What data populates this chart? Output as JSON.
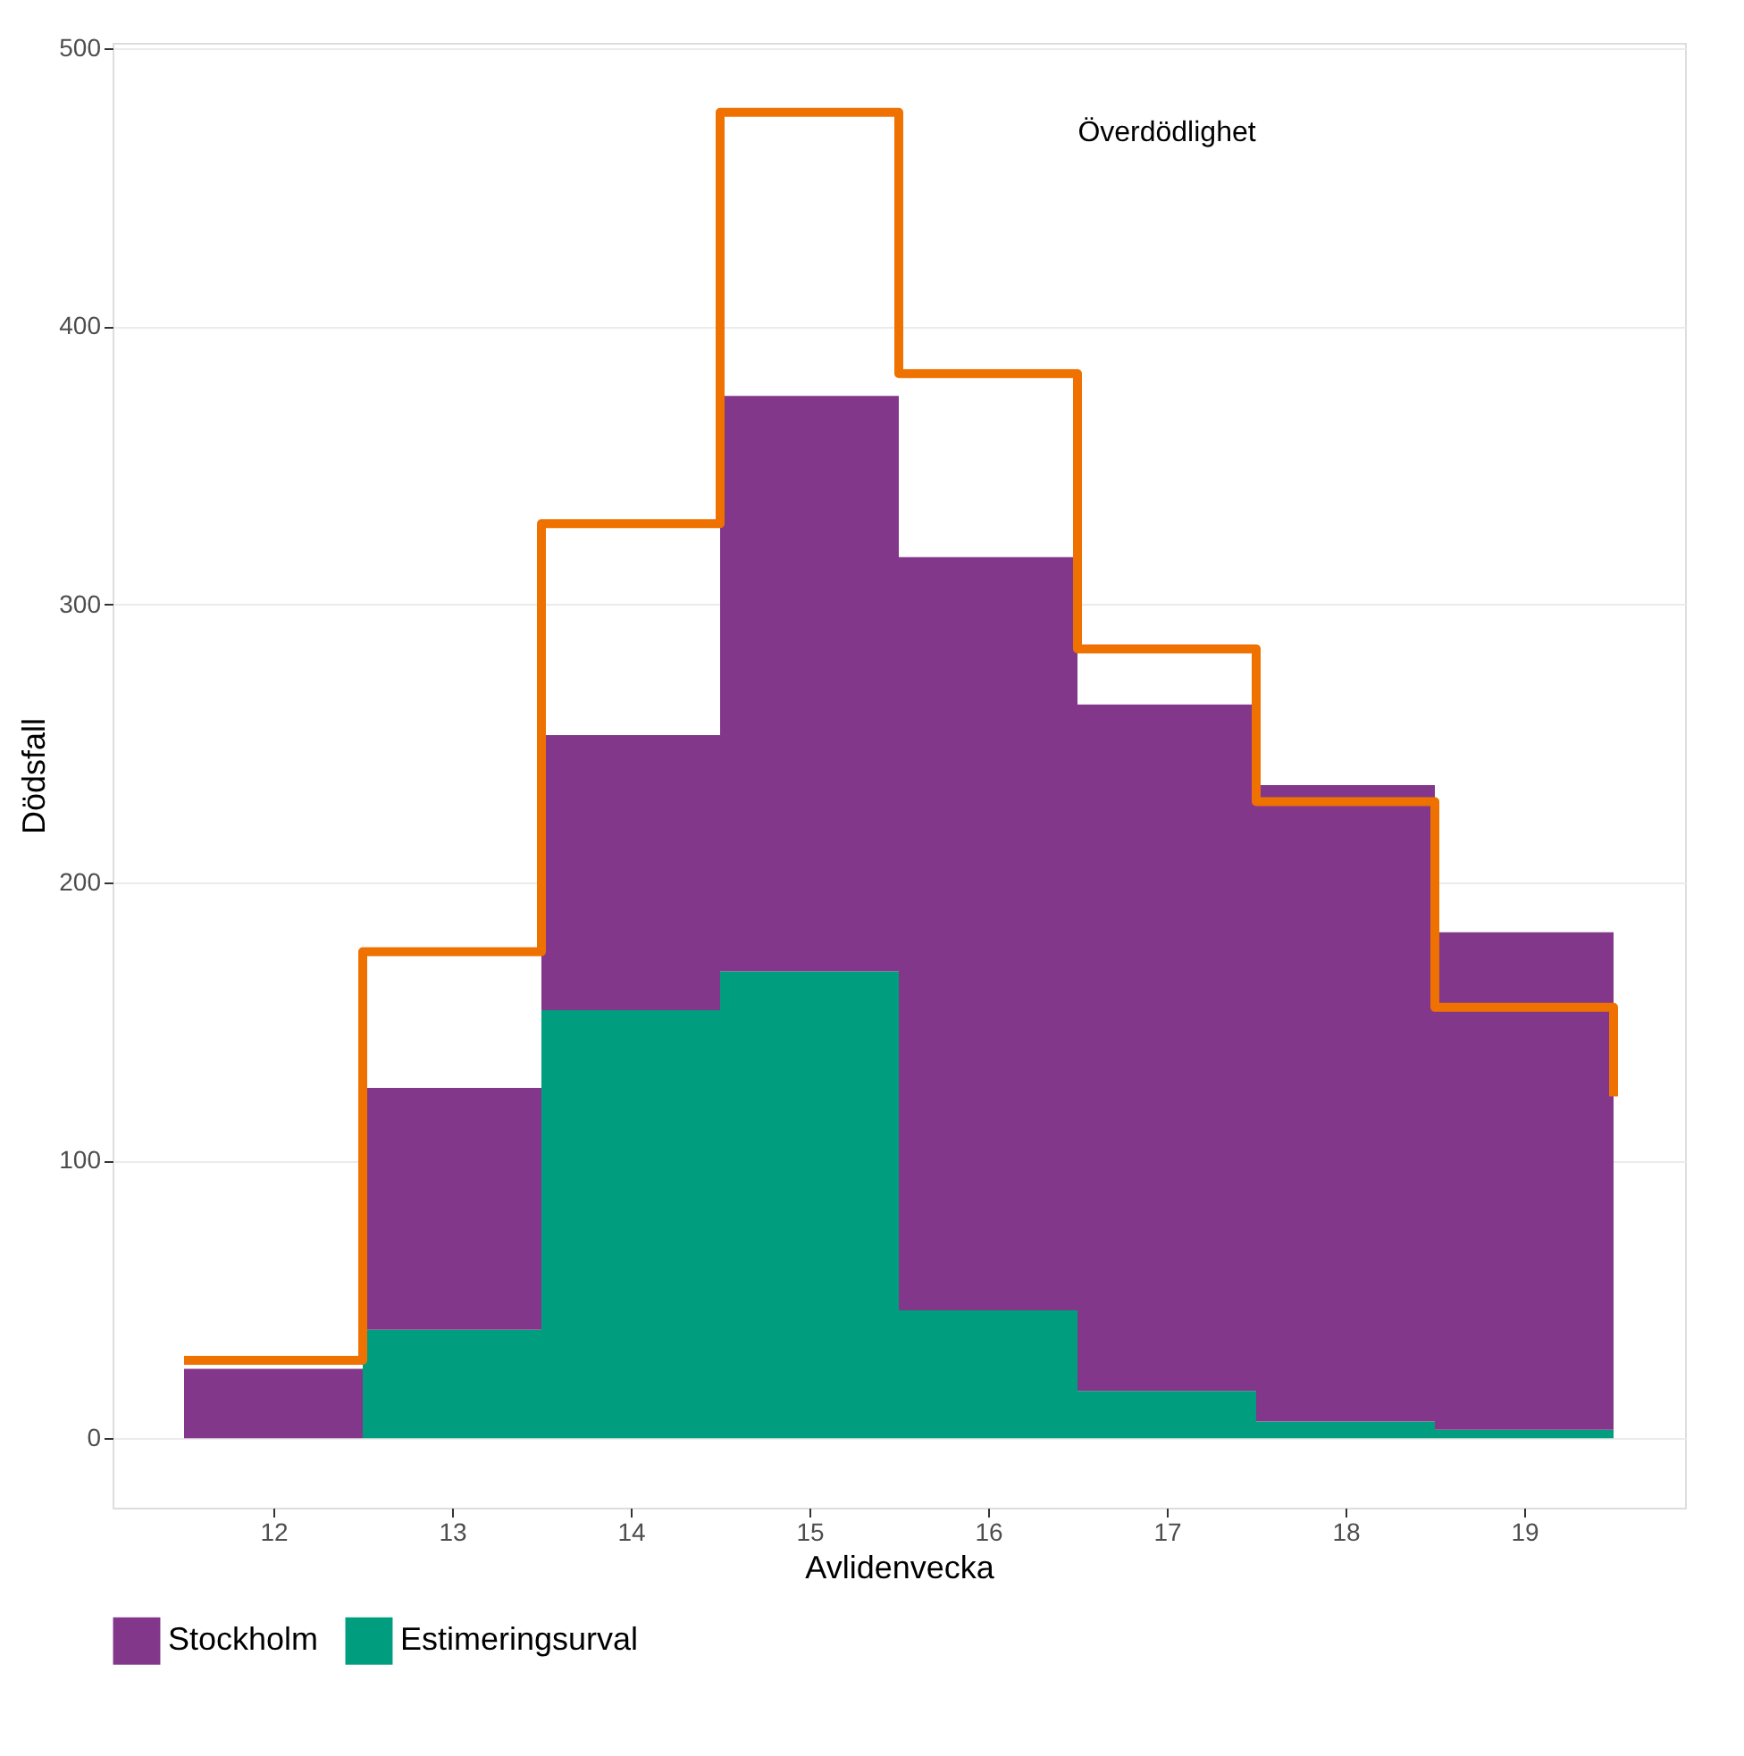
{
  "chart_data": {
    "type": "bar",
    "xlabel": "Avlidenvecka",
    "ylabel": "Dödsfall",
    "x": [
      12,
      13,
      14,
      15,
      16,
      17,
      18,
      19
    ],
    "series": [
      {
        "name": "Estimeringsurval",
        "color": "#009e7e",
        "values": [
          0,
          39,
          154,
          168,
          46,
          17,
          6,
          3
        ]
      },
      {
        "name": "Stockholm",
        "color": "#83378a",
        "values": [
          25,
          87,
          99,
          207,
          271,
          247,
          229,
          179
        ]
      },
      {
        "type": "step",
        "color": "#ef7100",
        "x": [
          11.5,
          12.5,
          13.5,
          14.5,
          15.5,
          16.5,
          17.5,
          18.5,
          19.5
        ],
        "values": [
          28,
          175,
          329,
          477,
          383,
          284,
          229,
          155,
          123
        ]
      }
    ],
    "annotations": [
      "Överdödlighet"
    ],
    "stacked": true,
    "xlim": [
      11.1,
      19.9
    ],
    "xticks": [
      12,
      13,
      14,
      15,
      16,
      17,
      18,
      19
    ],
    "ylim": [
      -25,
      502
    ],
    "yticks": [
      0,
      100,
      200,
      300,
      400,
      500
    ],
    "grid": "y",
    "legend": "bottom"
  }
}
